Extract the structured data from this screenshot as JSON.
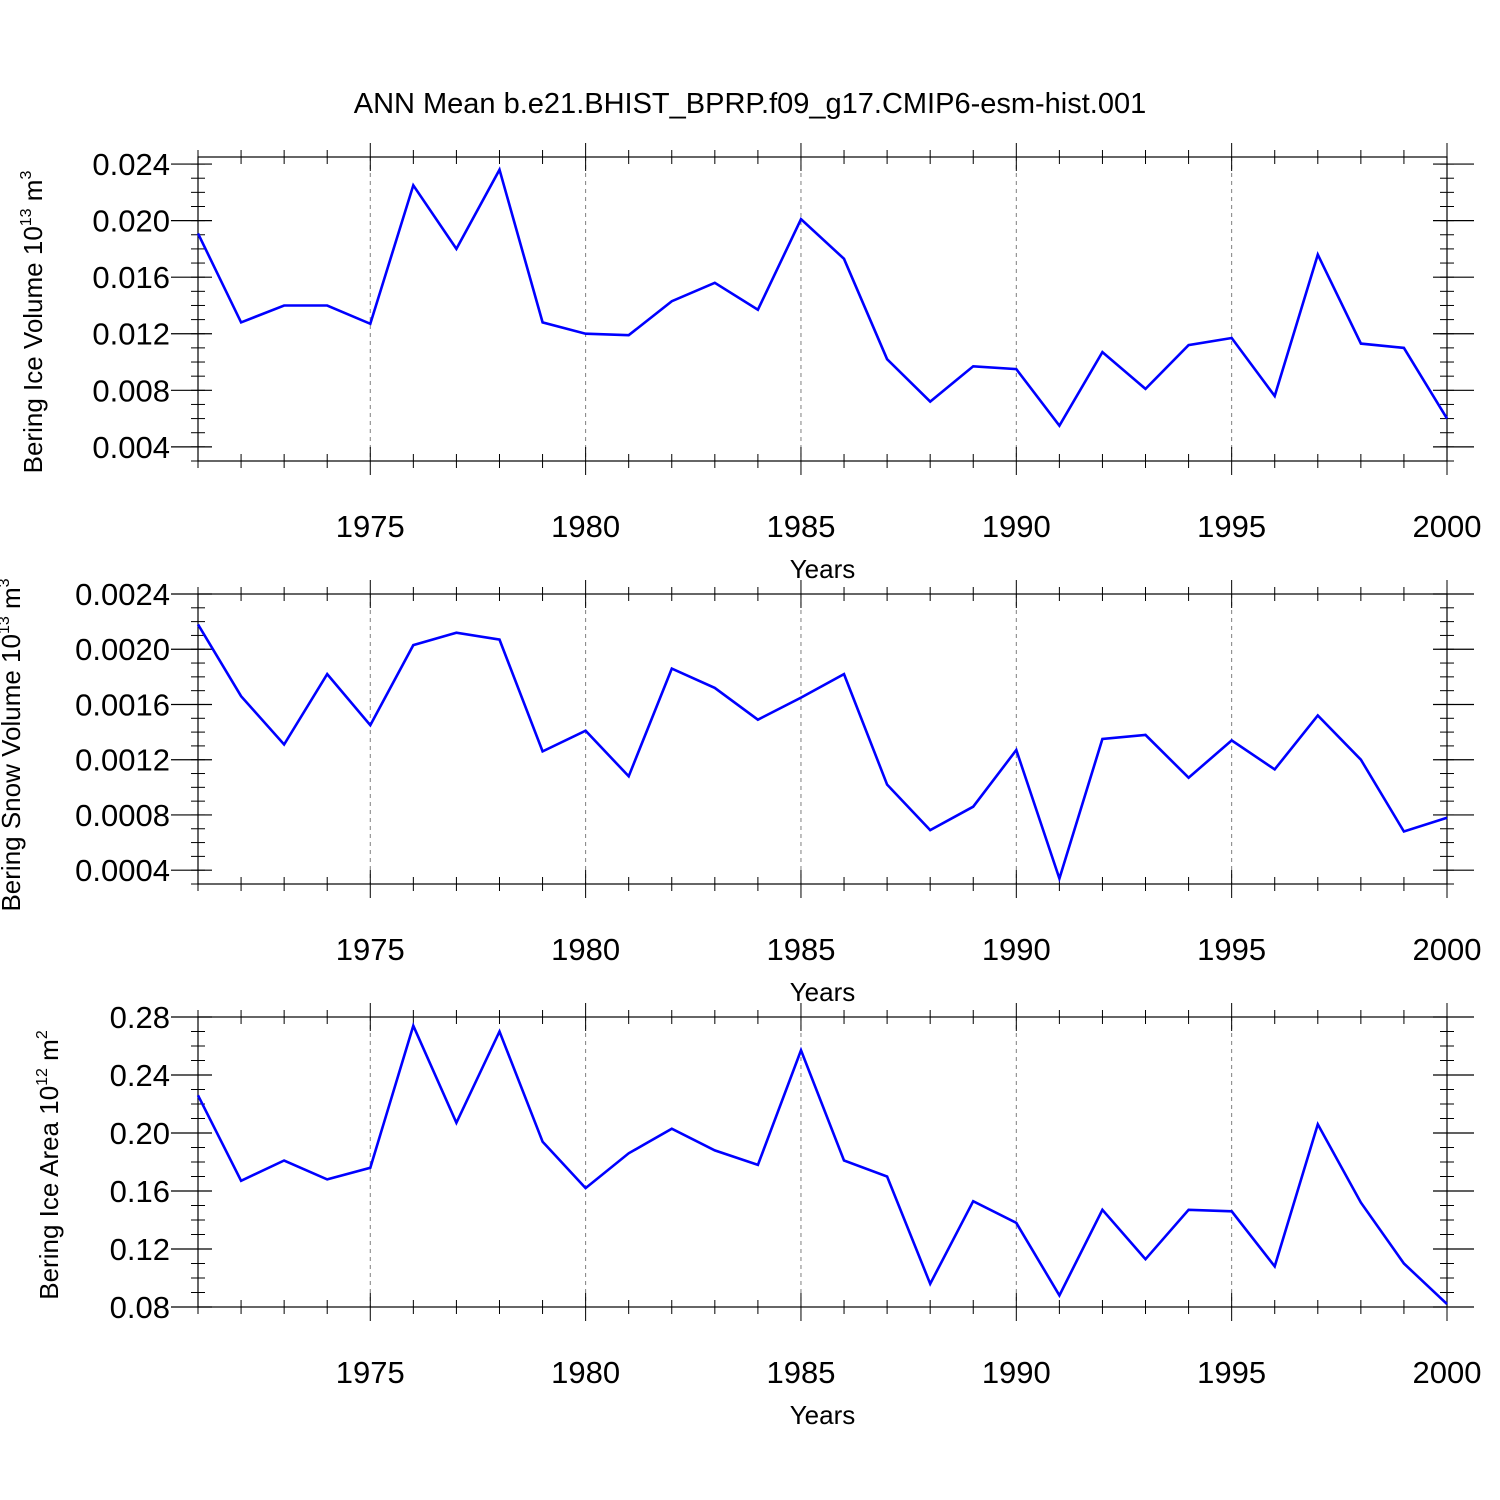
{
  "title": "ANN Mean b.e21.BHIST_BPRP.f09_g17.CMIP6-esm-hist.001",
  "colors": {
    "line": "#0000ff",
    "axis": "#000000",
    "grid": "#7f7f7f"
  },
  "chart_data": [
    {
      "type": "line",
      "title": "",
      "ylabel_main": "Bering Ice Volume 10",
      "ylabel_exp": "13",
      "ylabel_unit": "m",
      "ylabel_unit_exp": "3",
      "xlabel": "Years",
      "xlim": [
        1971,
        2000
      ],
      "ylim": [
        0.003,
        0.0245
      ],
      "xticks": [
        1975,
        1980,
        1985,
        1990,
        1995,
        2000
      ],
      "yticks": [
        0.004,
        0.008,
        0.012,
        0.016,
        0.02,
        0.024
      ],
      "ytick_labels": [
        "0.004",
        "0.008",
        "0.012",
        "0.016",
        "0.020",
        "0.024"
      ],
      "grid_x": [
        1975,
        1980,
        1985,
        1990,
        1995
      ],
      "x": [
        1971,
        1972,
        1973,
        1974,
        1975,
        1976,
        1977,
        1978,
        1979,
        1980,
        1981,
        1982,
        1983,
        1984,
        1985,
        1986,
        1987,
        1988,
        1989,
        1990,
        1991,
        1992,
        1993,
        1994,
        1995,
        1996,
        1997,
        1998,
        1999,
        2000
      ],
      "values": [
        0.0191,
        0.0128,
        0.014,
        0.014,
        0.0127,
        0.0225,
        0.018,
        0.0236,
        0.0128,
        0.012,
        0.0119,
        0.0143,
        0.0156,
        0.0137,
        0.0201,
        0.0173,
        0.0102,
        0.0072,
        0.0097,
        0.0095,
        0.0055,
        0.0107,
        0.0081,
        0.0112,
        0.0117,
        0.0076,
        0.0176,
        0.0113,
        0.011,
        0.006
      ]
    },
    {
      "type": "line",
      "title": "",
      "ylabel_main": "Bering Snow Volume 10",
      "ylabel_exp": "13",
      "ylabel_unit": "m",
      "ylabel_unit_exp": "3",
      "xlabel": "Years",
      "xlim": [
        1971,
        2000
      ],
      "ylim": [
        0.0003,
        0.0024
      ],
      "xticks": [
        1975,
        1980,
        1985,
        1990,
        1995,
        2000
      ],
      "yticks": [
        0.0004,
        0.0008,
        0.0012,
        0.0016,
        0.002,
        0.0024
      ],
      "ytick_labels": [
        "0.0004",
        "0.0008",
        "0.0012",
        "0.0016",
        "0.0020",
        "0.0024"
      ],
      "grid_x": [
        1975,
        1980,
        1985,
        1990,
        1995
      ],
      "x": [
        1971,
        1972,
        1973,
        1974,
        1975,
        1976,
        1977,
        1978,
        1979,
        1980,
        1981,
        1982,
        1983,
        1984,
        1985,
        1986,
        1987,
        1988,
        1989,
        1990,
        1991,
        1992,
        1993,
        1994,
        1995,
        1996,
        1997,
        1998,
        1999,
        2000
      ],
      "values": [
        0.00218,
        0.00166,
        0.00131,
        0.00182,
        0.00145,
        0.00203,
        0.00212,
        0.00207,
        0.00126,
        0.00141,
        0.00108,
        0.00186,
        0.00172,
        0.00149,
        0.00165,
        0.00182,
        0.00102,
        0.00069,
        0.00086,
        0.00127,
        0.00034,
        0.00135,
        0.00138,
        0.00107,
        0.00134,
        0.00113,
        0.00152,
        0.0012,
        0.00068,
        0.00078
      ]
    },
    {
      "type": "line",
      "title": "",
      "ylabel_main": "Bering Ice Area 10",
      "ylabel_exp": "12",
      "ylabel_unit": "m",
      "ylabel_unit_exp": "2",
      "xlabel": "Years",
      "xlim": [
        1971,
        2000
      ],
      "ylim": [
        0.08,
        0.28
      ],
      "xticks": [
        1975,
        1980,
        1985,
        1990,
        1995,
        2000
      ],
      "yticks": [
        0.08,
        0.12,
        0.16,
        0.2,
        0.24,
        0.28
      ],
      "ytick_labels": [
        "0.08",
        "0.12",
        "0.16",
        "0.20",
        "0.24",
        "0.28"
      ],
      "grid_x": [
        1975,
        1980,
        1985,
        1990,
        1995
      ],
      "x": [
        1971,
        1972,
        1973,
        1974,
        1975,
        1976,
        1977,
        1978,
        1979,
        1980,
        1981,
        1982,
        1983,
        1984,
        1985,
        1986,
        1987,
        1988,
        1989,
        1990,
        1991,
        1992,
        1993,
        1994,
        1995,
        1996,
        1997,
        1998,
        1999,
        2000
      ],
      "values": [
        0.226,
        0.167,
        0.181,
        0.168,
        0.176,
        0.274,
        0.207,
        0.27,
        0.194,
        0.162,
        0.186,
        0.203,
        0.188,
        0.178,
        0.257,
        0.181,
        0.17,
        0.096,
        0.153,
        0.138,
        0.088,
        0.147,
        0.113,
        0.147,
        0.146,
        0.108,
        0.206,
        0.152,
        0.11,
        0.082
      ]
    }
  ]
}
